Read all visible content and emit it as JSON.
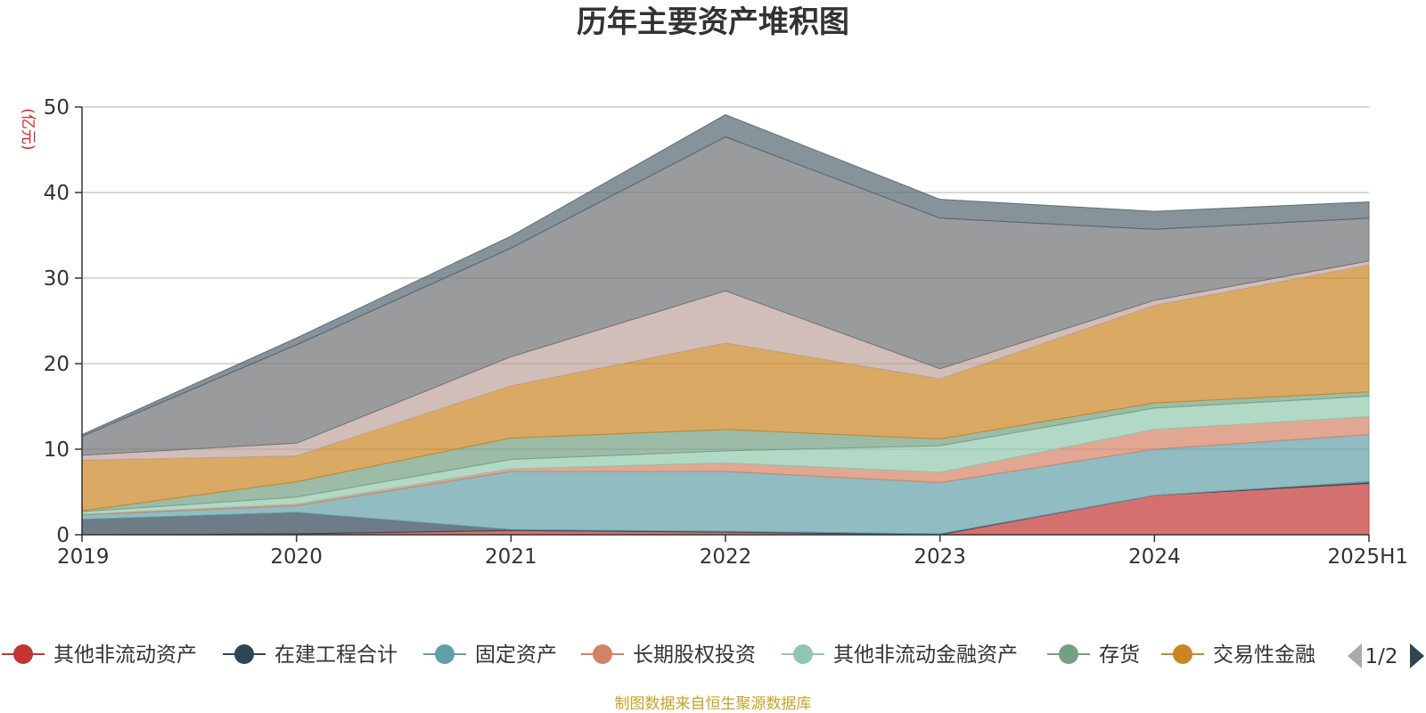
{
  "chart_data": {
    "type": "area",
    "stacked": true,
    "title": "历年主要资产堆积图",
    "ylabel": "(亿元)",
    "ylim": [
      0,
      50
    ],
    "yticks": [
      0,
      10,
      20,
      30,
      40,
      50
    ],
    "categories": [
      "2019",
      "2020",
      "2021",
      "2022",
      "2023",
      "2024",
      "2025H1"
    ],
    "grid": true,
    "series": [
      {
        "name": "其他非流动资产",
        "color": "#c23531",
        "values": [
          0.0,
          0.1,
          0.5,
          0.3,
          0.0,
          4.6,
          6.0
        ]
      },
      {
        "name": "在建工程合计",
        "color": "#2f4554",
        "values": [
          1.8,
          2.5,
          0.1,
          0.1,
          0.1,
          0.0,
          0.2
        ]
      },
      {
        "name": "固定资产",
        "color": "#61a0a8",
        "values": [
          0.5,
          0.8,
          6.8,
          7.0,
          6.0,
          5.4,
          5.5
        ]
      },
      {
        "name": "长期股权投资",
        "color": "#d48265",
        "values": [
          0.1,
          0.2,
          0.3,
          1.0,
          1.2,
          2.3,
          2.1
        ]
      },
      {
        "name": "其他非流动金融资产",
        "color": "#91c7ae",
        "values": [
          0.3,
          0.8,
          1.1,
          1.4,
          3.1,
          2.5,
          2.4
        ]
      },
      {
        "name": "存货",
        "color": "#749f83",
        "values": [
          0.1,
          1.8,
          2.5,
          2.5,
          0.8,
          0.6,
          0.5
        ]
      },
      {
        "name": "交易性金融",
        "color": "#ca8622",
        "values": [
          5.9,
          3.0,
          6.1,
          10.1,
          7.0,
          11.4,
          14.8
        ]
      },
      {
        "name": "",
        "color": "#bda29a",
        "values": [
          0.6,
          1.5,
          3.4,
          6.1,
          1.2,
          0.6,
          0.5
        ]
      },
      {
        "name": "",
        "color": "#6e7074",
        "values": [
          2.2,
          11.5,
          12.7,
          18.0,
          17.6,
          8.3,
          5.0
        ]
      },
      {
        "name": "",
        "color": "#546570",
        "values": [
          0.2,
          0.8,
          1.4,
          2.6,
          2.2,
          2.1,
          1.9
        ]
      }
    ]
  },
  "legend": {
    "items": [
      {
        "label": "其他非流动资产",
        "color": "#c23531"
      },
      {
        "label": "在建工程合计",
        "color": "#2f4554"
      },
      {
        "label": "固定资产",
        "color": "#61a0a8"
      },
      {
        "label": "长期股权投资",
        "color": "#d48265"
      },
      {
        "label": "其他非流动金融资产",
        "color": "#91c7ae"
      },
      {
        "label": "存货",
        "color": "#749f83"
      },
      {
        "label": "交易性金融",
        "color": "#ca8622"
      }
    ],
    "page": "1/2"
  },
  "source": "制图数据来自恒生聚源数据库"
}
